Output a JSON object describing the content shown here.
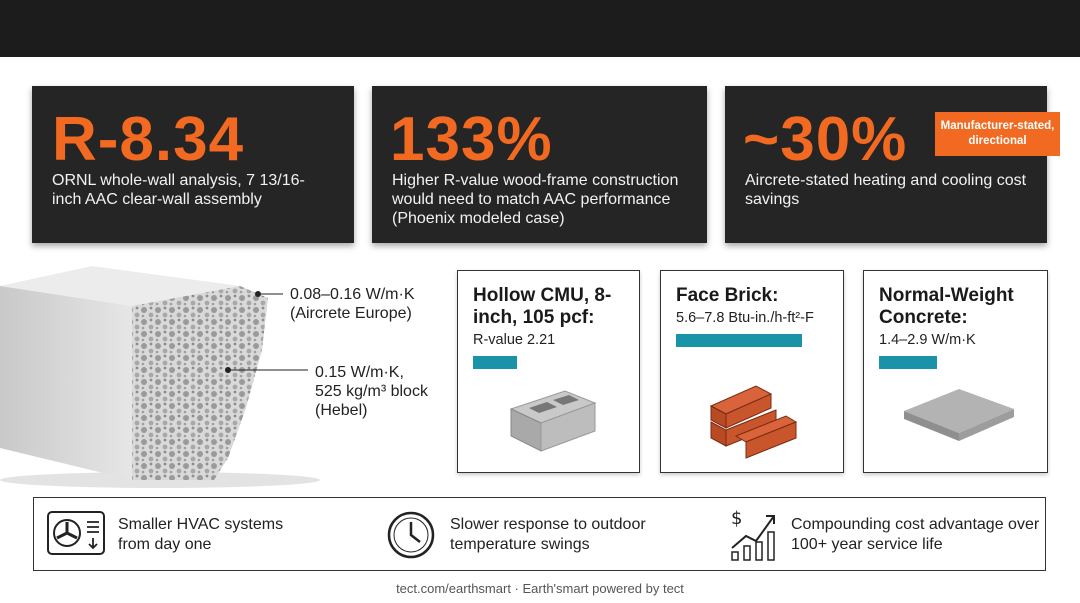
{
  "stats": [
    {
      "value": "R-8.34",
      "description": "ORNL whole-wall analysis, 7 13/16-inch AAC clear-wall assembly"
    },
    {
      "value": "133%",
      "description": "Higher R-value wood-frame construction would need to match AAC performance (Phoenix modeled case)"
    },
    {
      "value": "~30%",
      "description": "Aircrete-stated heating and cooling cost savings",
      "badge": "Manufacturer-stated, directional"
    }
  ],
  "block_callouts": [
    {
      "lines": [
        "0.08–0.16 W/m·K",
        "(Aircrete Europe)"
      ]
    },
    {
      "lines": [
        "0.15 W/m·K,",
        "525 kg/m³ block",
        "(Hebel)"
      ]
    }
  ],
  "materials": [
    {
      "title": "Hollow CMU, 8-inch, 105 pcf:",
      "value": "R-value 2.21"
    },
    {
      "title": "Face Brick:",
      "value": "5.6–7.8 Btu-in./h-ft²-F"
    },
    {
      "title": "Normal-Weight Concrete:",
      "value": "1.4–2.9 W/m·K"
    }
  ],
  "benefits": [
    "Smaller HVAC systems from day one",
    "Slower response to outdoor temperature swings",
    "Compounding cost advantage over 100+ year service life"
  ],
  "footer": "tect.com/earthsmart · Earth'smart powered by tect"
}
